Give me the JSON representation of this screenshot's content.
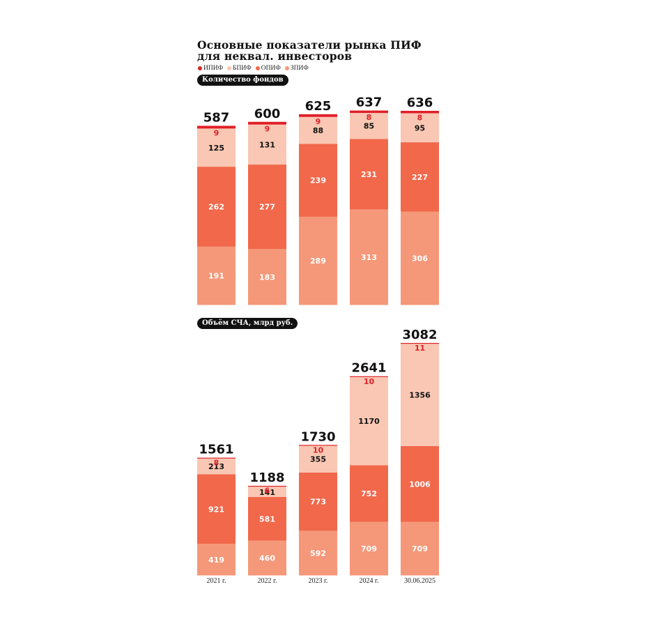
{
  "title_line1": "Основные показатели рынка ПИФ",
  "title_line2": "для неквал. инвесторов",
  "legend": [
    {
      "label": "ИПИФ",
      "color": "#e02028"
    },
    {
      "label": "БПИФ",
      "color": "#f9c7b3"
    },
    {
      "label": "ОПИФ",
      "color": "#f1684b"
    },
    {
      "label": "ЗПИФ",
      "color": "#f49879"
    }
  ],
  "panel_labels": {
    "count": "Количество фондов",
    "assets": "Объём СЧА, млрд руб."
  },
  "chart_data": [
    {
      "type": "bar",
      "stacked": true,
      "title": "Количество фондов",
      "categories": [
        "2021 г.",
        "2022 г.",
        "2023 г.",
        "2024 г.",
        "30.06.2025"
      ],
      "totals": [
        587,
        600,
        625,
        637,
        636
      ],
      "series": [
        {
          "name": "ЗПИФ",
          "color": "#f49879",
          "values": [
            191,
            183,
            289,
            313,
            306
          ]
        },
        {
          "name": "ОПИФ",
          "color": "#f1684b",
          "values": [
            262,
            277,
            239,
            231,
            227
          ]
        },
        {
          "name": "БПИФ",
          "color": "#f9c7b3",
          "values": [
            125,
            131,
            88,
            85,
            95
          ]
        },
        {
          "name": "ИПИФ",
          "color": "#e02028",
          "values": [
            9,
            9,
            9,
            8,
            8
          ]
        }
      ]
    },
    {
      "type": "bar",
      "stacked": true,
      "title": "Объём СЧА, млрд руб.",
      "categories": [
        "2021 г.",
        "2022 г.",
        "2023 г.",
        "2024 г.",
        "30.06.2025"
      ],
      "totals": [
        1561,
        1188,
        1730,
        2641,
        3082
      ],
      "series": [
        {
          "name": "ЗПИФ",
          "color": "#f49879",
          "values": [
            419,
            460,
            592,
            709,
            709
          ]
        },
        {
          "name": "ОПИФ",
          "color": "#f1684b",
          "values": [
            921,
            581,
            773,
            752,
            1006
          ]
        },
        {
          "name": "БПИФ",
          "color": "#f9c7b3",
          "values": [
            213,
            141,
            355,
            1170,
            1356
          ]
        },
        {
          "name": "ИПИФ",
          "color": "#e02028",
          "values": [
            8,
            6,
            10,
            10,
            11
          ]
        }
      ]
    }
  ]
}
